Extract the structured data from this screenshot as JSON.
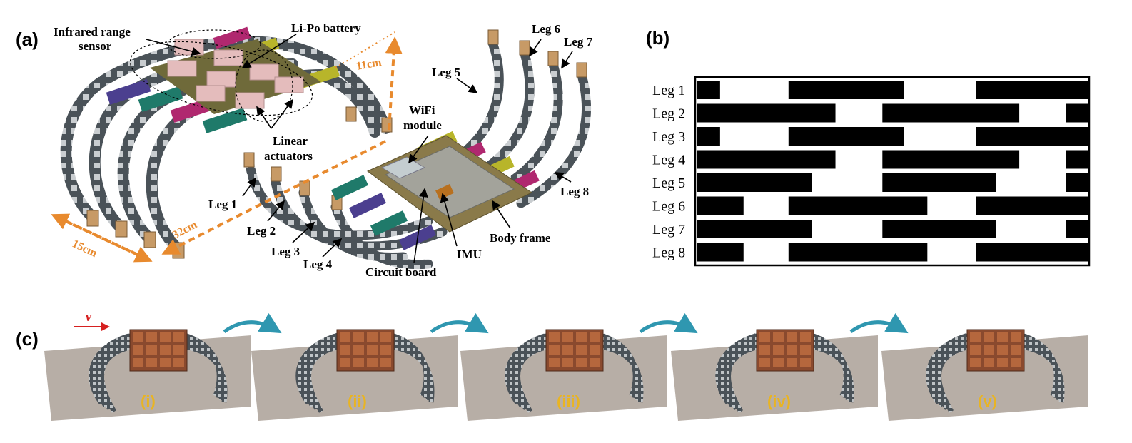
{
  "panels": {
    "a": "(a)",
    "b": "(b)",
    "c": "(c)"
  },
  "panel_a": {
    "labels": {
      "infrared_line1": "Infrared range",
      "infrared_line2": "sensor",
      "lipo": "Li-Po battery",
      "linear_line1": "Linear",
      "linear_line2": "actuators",
      "wifi_line1": "WiFi",
      "wifi_line2": "module",
      "imu": "IMU",
      "body_frame": "Body frame",
      "circuit_board": "Circuit board",
      "leg1": "Leg 1",
      "leg2": "Leg 2",
      "leg3": "Leg 3",
      "leg4": "Leg 4",
      "leg5": "Leg 5",
      "leg6": "Leg 6",
      "leg7": "Leg 7",
      "leg8": "Leg 8"
    },
    "dimensions": {
      "height": "11cm",
      "length": "32cm",
      "width": "15cm"
    },
    "colors": {
      "dimension": "#e88a2e",
      "leg_chain": "#4a5258",
      "actuator_purple": "#4b3f8f",
      "actuator_teal": "#1f7a6a",
      "actuator_magenta": "#b0286f",
      "actuator_yellow": "#b8b52a",
      "battery": "#e4bcbc",
      "board": "#8a7a4a"
    }
  },
  "panel_b": {
    "rows": [
      {
        "label": "Leg 1",
        "stance": [
          [
            0.0,
            0.06
          ],
          [
            0.235,
            0.53
          ],
          [
            0.715,
            1.0
          ]
        ]
      },
      {
        "label": "Leg 2",
        "stance": [
          [
            0.0,
            0.355
          ],
          [
            0.475,
            0.825
          ],
          [
            0.945,
            1.0
          ]
        ]
      },
      {
        "label": "Leg 3",
        "stance": [
          [
            0.0,
            0.06
          ],
          [
            0.235,
            0.53
          ],
          [
            0.715,
            1.0
          ]
        ]
      },
      {
        "label": "Leg 4",
        "stance": [
          [
            0.0,
            0.355
          ],
          [
            0.475,
            0.825
          ],
          [
            0.945,
            1.0
          ]
        ]
      },
      {
        "label": "Leg 5",
        "stance": [
          [
            0.0,
            0.295
          ],
          [
            0.475,
            0.765
          ],
          [
            0.945,
            1.0
          ]
        ]
      },
      {
        "label": "Leg 6",
        "stance": [
          [
            0.0,
            0.12
          ],
          [
            0.235,
            0.59
          ],
          [
            0.715,
            1.0
          ]
        ]
      },
      {
        "label": "Leg 7",
        "stance": [
          [
            0.0,
            0.295
          ],
          [
            0.475,
            0.765
          ],
          [
            0.945,
            1.0
          ]
        ]
      },
      {
        "label": "Leg 8",
        "stance": [
          [
            0.0,
            0.12
          ],
          [
            0.235,
            0.59
          ],
          [
            0.715,
            1.0
          ]
        ]
      }
    ],
    "colors": {
      "stance": "#000000",
      "background": "#ffffff"
    }
  },
  "panel_c": {
    "velocity_label": "v",
    "stages": [
      "(i)",
      "(ii)",
      "(iii)",
      "(iv)",
      "(v)"
    ],
    "colors": {
      "arrow": "#2f97b0",
      "velocity": "#d62020",
      "stage_label": "#e8b424",
      "floor": "#b7aea6"
    }
  }
}
